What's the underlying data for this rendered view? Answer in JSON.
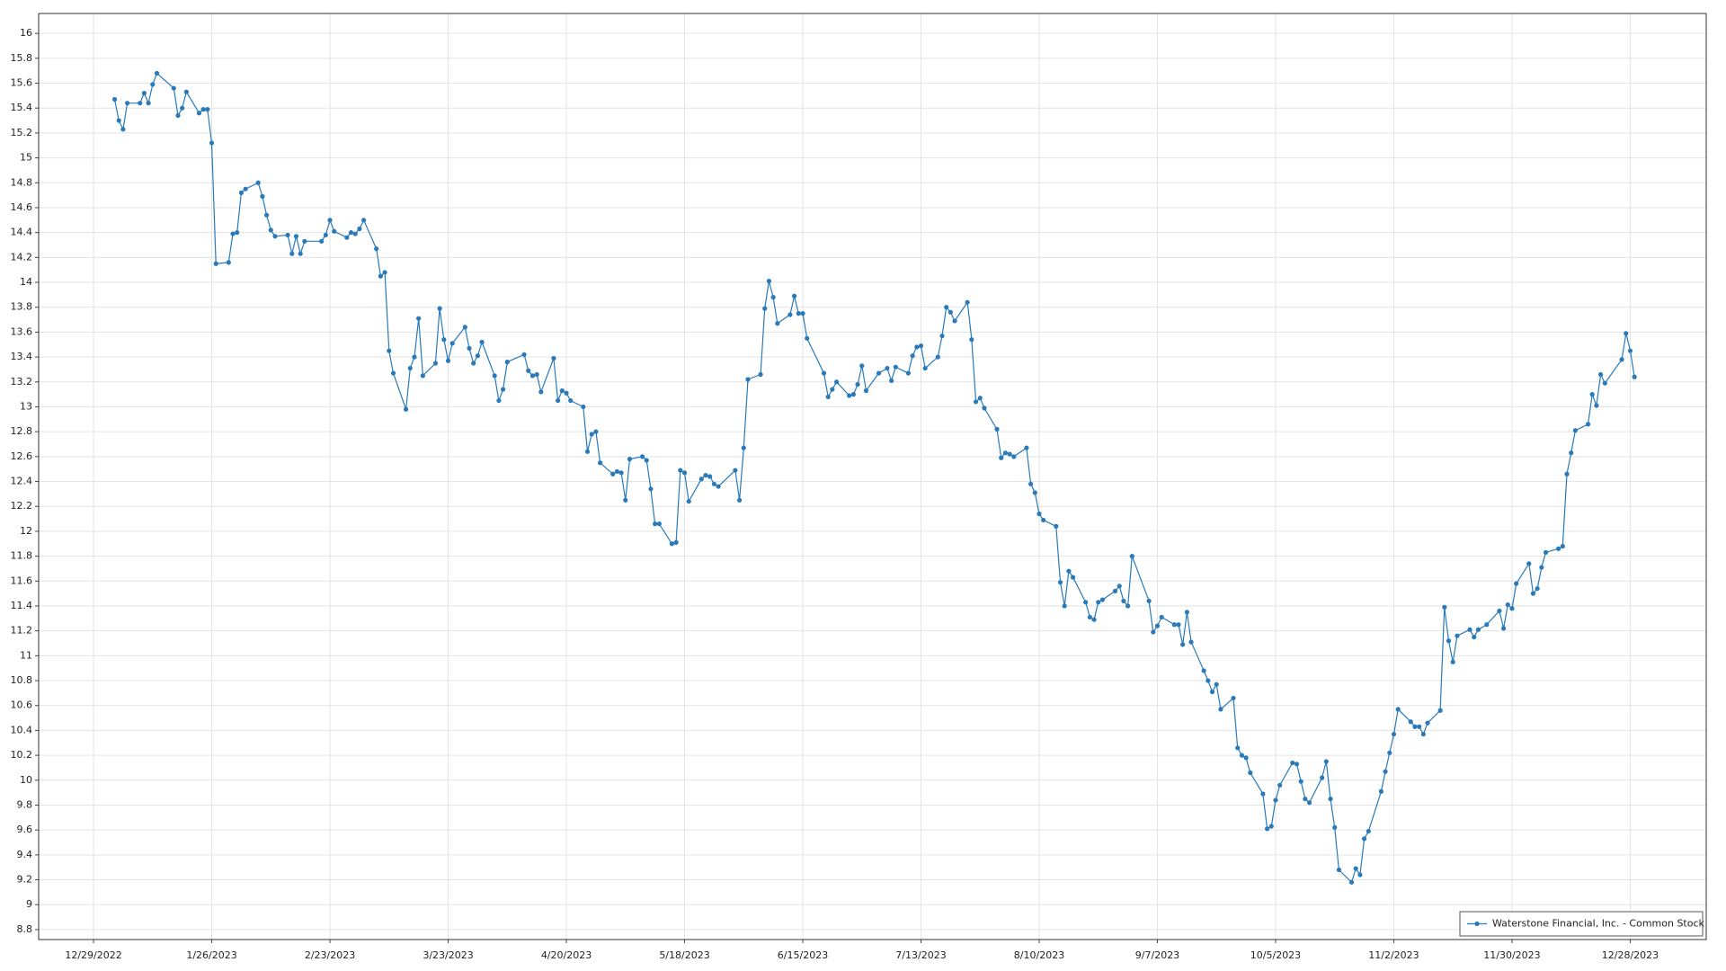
{
  "chart_data": {
    "type": "line",
    "x": [
      "1/3/2023",
      "1/4/2023",
      "1/5/2023",
      "1/6/2023",
      "1/9/2023",
      "1/10/2023",
      "1/11/2023",
      "1/12/2023",
      "1/13/2023",
      "1/17/2023",
      "1/18/2023",
      "1/19/2023",
      "1/20/2023",
      "1/23/2023",
      "1/24/2023",
      "1/25/2023",
      "1/26/2023",
      "1/27/2023",
      "1/30/2023",
      "1/31/2023",
      "2/1/2023",
      "2/2/2023",
      "2/3/2023",
      "2/6/2023",
      "2/7/2023",
      "2/8/2023",
      "2/9/2023",
      "2/10/2023",
      "2/13/2023",
      "2/14/2023",
      "2/15/2023",
      "2/16/2023",
      "2/17/2023",
      "2/21/2023",
      "2/22/2023",
      "2/23/2023",
      "2/24/2023",
      "2/27/2023",
      "2/28/2023",
      "3/1/2023",
      "3/2/2023",
      "3/3/2023",
      "3/6/2023",
      "3/7/2023",
      "3/8/2023",
      "3/9/2023",
      "3/10/2023",
      "3/13/2023",
      "3/14/2023",
      "3/15/2023",
      "3/16/2023",
      "3/17/2023",
      "3/20/2023",
      "3/21/2023",
      "3/22/2023",
      "3/23/2023",
      "3/24/2023",
      "3/27/2023",
      "3/28/2023",
      "3/29/2023",
      "3/30/2023",
      "3/31/2023",
      "4/3/2023",
      "4/4/2023",
      "4/5/2023",
      "4/6/2023",
      "4/10/2023",
      "4/11/2023",
      "4/12/2023",
      "4/13/2023",
      "4/14/2023",
      "4/17/2023",
      "4/18/2023",
      "4/19/2023",
      "4/20/2023",
      "4/21/2023",
      "4/24/2023",
      "4/25/2023",
      "4/26/2023",
      "4/27/2023",
      "4/28/2023",
      "5/1/2023",
      "5/2/2023",
      "5/3/2023",
      "5/4/2023",
      "5/5/2023",
      "5/8/2023",
      "5/9/2023",
      "5/10/2023",
      "5/11/2023",
      "5/12/2023",
      "5/15/2023",
      "5/16/2023",
      "5/17/2023",
      "5/18/2023",
      "5/19/2023",
      "5/22/2023",
      "5/23/2023",
      "5/24/2023",
      "5/25/2023",
      "5/26/2023",
      "5/30/2023",
      "5/31/2023",
      "6/1/2023",
      "6/2/2023",
      "6/5/2023",
      "6/6/2023",
      "6/7/2023",
      "6/8/2023",
      "6/9/2023",
      "6/12/2023",
      "6/13/2023",
      "6/14/2023",
      "6/15/2023",
      "6/16/2023",
      "6/20/2023",
      "6/21/2023",
      "6/22/2023",
      "6/23/2023",
      "6/26/2023",
      "6/27/2023",
      "6/28/2023",
      "6/29/2023",
      "6/30/2023",
      "7/3/2023",
      "7/5/2023",
      "7/6/2023",
      "7/7/2023",
      "7/10/2023",
      "7/11/2023",
      "7/12/2023",
      "7/13/2023",
      "7/14/2023",
      "7/17/2023",
      "7/18/2023",
      "7/19/2023",
      "7/20/2023",
      "7/21/2023",
      "7/24/2023",
      "7/25/2023",
      "7/26/2023",
      "7/27/2023",
      "7/28/2023",
      "7/31/2023",
      "8/1/2023",
      "8/2/2023",
      "8/3/2023",
      "8/4/2023",
      "8/7/2023",
      "8/8/2023",
      "8/9/2023",
      "8/10/2023",
      "8/11/2023",
      "8/14/2023",
      "8/15/2023",
      "8/16/2023",
      "8/17/2023",
      "8/18/2023",
      "8/21/2023",
      "8/22/2023",
      "8/23/2023",
      "8/24/2023",
      "8/25/2023",
      "8/28/2023",
      "8/29/2023",
      "8/30/2023",
      "8/31/2023",
      "9/1/2023",
      "9/5/2023",
      "9/6/2023",
      "9/7/2023",
      "9/8/2023",
      "9/11/2023",
      "9/12/2023",
      "9/13/2023",
      "9/14/2023",
      "9/15/2023",
      "9/18/2023",
      "9/19/2023",
      "9/20/2023",
      "9/21/2023",
      "9/22/2023",
      "9/25/2023",
      "9/26/2023",
      "9/27/2023",
      "9/28/2023",
      "9/29/2023",
      "10/2/2023",
      "10/3/2023",
      "10/4/2023",
      "10/5/2023",
      "10/6/2023",
      "10/9/2023",
      "10/10/2023",
      "10/11/2023",
      "10/12/2023",
      "10/13/2023",
      "10/16/2023",
      "10/17/2023",
      "10/18/2023",
      "10/19/2023",
      "10/20/2023",
      "10/23/2023",
      "10/24/2023",
      "10/25/2023",
      "10/26/2023",
      "10/27/2023",
      "10/30/2023",
      "10/31/2023",
      "11/1/2023",
      "11/2/2023",
      "11/3/2023",
      "11/6/2023",
      "11/7/2023",
      "11/8/2023",
      "11/9/2023",
      "11/10/2023",
      "11/13/2023",
      "11/14/2023",
      "11/15/2023",
      "11/16/2023",
      "11/17/2023",
      "11/20/2023",
      "11/21/2023",
      "11/22/2023",
      "11/24/2023",
      "11/27/2023",
      "11/28/2023",
      "11/29/2023",
      "11/30/2023",
      "12/1/2023",
      "12/4/2023",
      "12/5/2023",
      "12/6/2023",
      "12/7/2023",
      "12/8/2023",
      "12/11/2023",
      "12/12/2023",
      "12/13/2023",
      "12/14/2023",
      "12/15/2023",
      "12/18/2023",
      "12/19/2023",
      "12/20/2023",
      "12/21/2023",
      "12/22/2023",
      "12/26/2023",
      "12/27/2023",
      "12/28/2023",
      "12/29/2023"
    ],
    "series": [
      {
        "name": "Waterstone Financial, Inc. - Common Stock",
        "color": "#2a7ab9",
        "values": [
          15.47,
          15.3,
          15.23,
          15.44,
          15.44,
          15.52,
          15.44,
          15.59,
          15.68,
          15.56,
          15.34,
          15.4,
          15.53,
          15.36,
          15.39,
          15.39,
          15.12,
          14.15,
          14.16,
          14.39,
          14.4,
          14.72,
          14.75,
          14.8,
          14.69,
          14.54,
          14.42,
          14.37,
          14.38,
          14.23,
          14.37,
          14.23,
          14.33,
          14.33,
          14.38,
          14.5,
          14.41,
          14.36,
          14.4,
          14.39,
          14.43,
          14.5,
          14.27,
          14.05,
          14.08,
          13.45,
          13.27,
          12.98,
          13.31,
          13.4,
          13.71,
          13.25,
          13.35,
          13.79,
          13.54,
          13.37,
          13.51,
          13.64,
          13.47,
          13.35,
          13.41,
          13.52,
          13.25,
          13.05,
          13.14,
          13.36,
          13.42,
          13.29,
          13.25,
          13.26,
          13.12,
          13.39,
          13.05,
          13.13,
          13.11,
          13.05,
          13.0,
          12.64,
          12.78,
          12.8,
          12.55,
          12.46,
          12.48,
          12.47,
          12.25,
          12.58,
          12.6,
          12.57,
          12.34,
          12.06,
          12.06,
          11.9,
          11.91,
          12.49,
          12.47,
          12.24,
          12.42,
          12.45,
          12.44,
          12.38,
          12.36,
          12.49,
          12.25,
          12.67,
          13.22,
          13.26,
          13.79,
          14.01,
          13.88,
          13.67,
          13.74,
          13.89,
          13.75,
          13.75,
          13.55,
          13.27,
          13.08,
          13.14,
          13.2,
          13.09,
          13.1,
          13.18,
          13.33,
          13.13,
          13.27,
          13.31,
          13.21,
          13.32,
          13.27,
          13.41,
          13.48,
          13.49,
          13.31,
          13.4,
          13.57,
          13.8,
          13.76,
          13.69,
          13.84,
          13.54,
          13.04,
          13.07,
          12.99,
          12.82,
          12.59,
          12.63,
          12.62,
          12.6,
          12.67,
          12.38,
          12.31,
          12.14,
          12.09,
          12.04,
          11.59,
          11.4,
          11.68,
          11.63,
          11.43,
          11.31,
          11.29,
          11.43,
          11.45,
          11.52,
          11.56,
          11.44,
          11.4,
          11.8,
          11.44,
          11.19,
          11.24,
          11.31,
          11.25,
          11.25,
          11.09,
          11.35,
          11.11,
          10.88,
          10.8,
          10.71,
          10.77,
          10.57,
          10.66,
          10.26,
          10.2,
          10.18,
          10.06,
          9.89,
          9.61,
          9.63,
          9.84,
          9.96,
          10.14,
          10.13,
          9.99,
          9.85,
          9.82,
          10.02,
          10.15,
          9.85,
          9.62,
          9.28,
          9.18,
          9.29,
          9.24,
          9.53,
          9.59,
          9.91,
          10.07,
          10.22,
          10.37,
          10.57,
          10.47,
          10.43,
          10.43,
          10.37,
          10.46,
          10.56,
          11.39,
          11.12,
          10.95,
          11.16,
          11.21,
          11.15,
          11.21,
          11.25,
          11.36,
          11.22,
          11.41,
          11.38,
          11.58,
          11.74,
          11.5,
          11.54,
          11.71,
          11.83,
          11.86,
          11.88,
          12.46,
          12.63,
          12.81,
          12.86,
          13.1,
          13.01,
          13.26,
          13.19,
          13.38,
          13.59,
          13.45,
          13.24
        ]
      }
    ],
    "xlim": [
      "12/16/2022",
      "1/15/2024"
    ],
    "xticks": [
      "12/29/2022",
      "1/26/2023",
      "2/23/2023",
      "3/23/2023",
      "4/20/2023",
      "5/18/2023",
      "6/15/2023",
      "7/13/2023",
      "8/10/2023",
      "9/7/2023",
      "10/5/2023",
      "11/2/2023",
      "11/30/2023",
      "12/28/2023"
    ],
    "ylim": [
      8.72,
      16.16
    ],
    "yticks": [
      8.8,
      9,
      9.2,
      9.4,
      9.6,
      9.8,
      10,
      10.2,
      10.4,
      10.6,
      10.8,
      11,
      11.2,
      11.4,
      11.6,
      11.8,
      12,
      12.2,
      12.4,
      12.6,
      12.8,
      13,
      13.2,
      13.4,
      13.6,
      13.8,
      14,
      14.2,
      14.4,
      14.6,
      14.8,
      15,
      15.2,
      15.4,
      15.6,
      15.8,
      16
    ],
    "grid": true,
    "legend": "lower right"
  }
}
